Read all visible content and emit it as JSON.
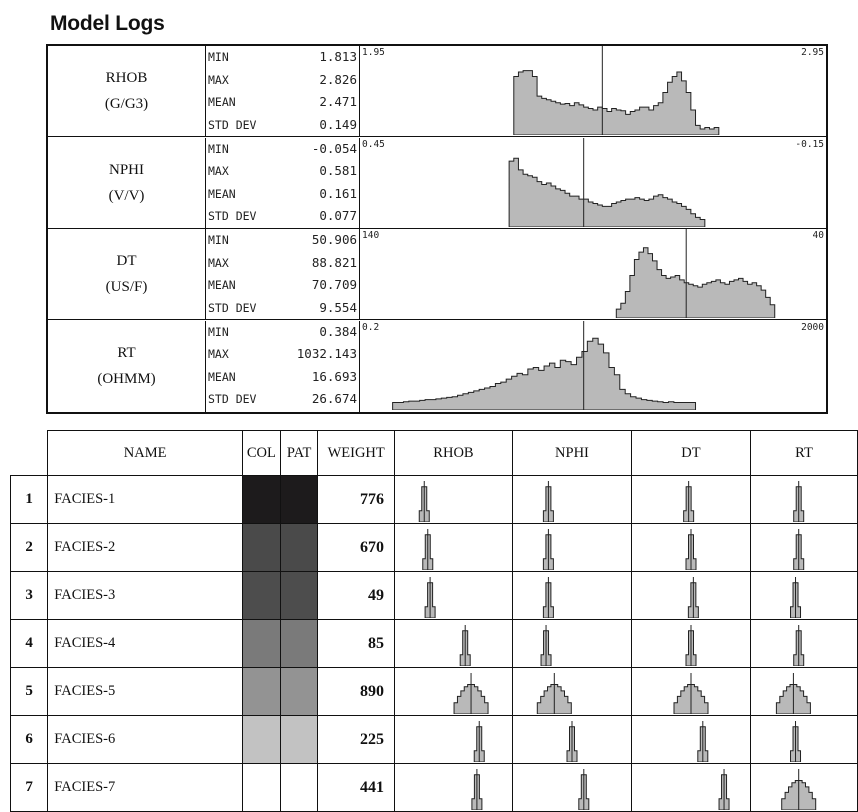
{
  "title": "Model Logs",
  "logs": [
    {
      "name": "RHOB",
      "unit": "(G/G3)",
      "min": "1.813",
      "max": "2.826",
      "mean": "2.471",
      "std": "0.149",
      "range_left": "1.95",
      "range_right": "2.95",
      "hist": [
        0,
        0,
        0,
        0,
        0,
        0,
        0,
        0,
        0,
        0,
        0,
        0,
        0,
        0,
        0,
        0,
        0,
        0,
        0,
        0,
        0,
        0,
        0,
        0,
        0,
        0,
        0,
        0,
        0,
        0,
        0,
        0,
        0,
        0,
        0,
        0,
        0,
        0,
        0,
        0,
        0,
        0,
        0,
        0,
        0,
        0,
        0,
        0,
        0,
        0,
        0,
        0,
        0,
        0,
        0,
        0,
        0,
        0,
        0,
        0,
        0,
        0,
        0,
        0,
        0,
        0,
        0,
        0,
        0,
        0,
        0,
        0,
        0,
        0,
        0,
        0,
        0,
        0,
        0,
        0,
        0,
        0,
        0,
        0,
        0,
        0,
        0,
        0,
        0,
        0,
        0,
        0,
        0,
        0,
        0,
        0,
        0,
        0,
        0,
        0,
        0,
        0,
        0,
        0,
        0,
        0,
        0,
        0,
        0,
        0,
        0,
        0,
        0,
        0,
        0,
        0,
        0,
        0,
        0,
        0,
        0,
        0,
        0,
        0,
        0,
        0,
        0,
        0,
        0,
        0,
        0,
        0,
        0,
        0,
        0,
        0,
        0,
        0,
        0,
        0,
        0,
        0,
        0,
        0,
        0,
        0,
        0,
        0,
        0,
        0,
        0,
        0,
        0,
        0,
        55,
        60,
        78,
        80,
        82,
        80,
        74,
        60,
        44,
        40,
        38,
        36,
        34,
        33,
        34,
        35,
        30,
        32,
        28,
        30,
        33,
        30,
        26,
        28,
        24,
        26,
        30,
        26,
        24,
        22,
        20,
        25,
        22,
        24,
        23,
        25,
        26,
        24,
        22,
        25,
        26,
        28,
        30,
        32,
        40,
        55,
        70,
        78,
        80,
        75,
        60,
        40,
        20,
        4,
        0,
        0,
        1,
        0,
        0,
        0
      ],
      "mean_frac": 0.52
    },
    {
      "name": "NPHI",
      "unit": "(V/V)",
      "min": "-0.054",
      "max": "0.581",
      "mean": "0.161",
      "std": "0.077",
      "range_left": "0.45",
      "range_right": "-0.15",
      "hist": [
        0,
        0,
        0,
        0,
        0,
        0,
        0,
        0,
        0,
        0,
        0,
        0,
        0,
        0,
        0,
        0,
        0,
        0,
        0,
        0,
        0,
        0,
        0,
        0,
        0,
        0,
        0,
        0,
        0,
        0,
        0,
        0,
        0,
        0,
        0,
        0,
        0,
        0,
        0,
        0,
        0,
        0,
        0,
        0,
        0,
        0,
        0,
        0,
        0,
        0,
        0,
        0,
        0,
        0,
        0,
        0,
        0,
        0,
        0,
        0,
        0,
        0,
        0,
        0,
        0,
        0,
        0,
        0,
        0,
        0,
        0,
        0,
        0,
        0,
        0,
        0,
        0,
        0,
        0,
        0,
        0,
        0,
        0,
        0,
        0,
        0,
        0,
        0,
        0,
        0,
        0,
        0,
        0,
        0,
        0,
        0,
        0,
        0,
        0,
        0,
        0,
        0,
        0,
        0,
        0,
        0,
        0,
        0,
        0,
        0,
        0,
        0,
        0,
        0,
        0,
        0,
        0,
        0,
        0,
        0,
        0,
        0,
        0,
        0,
        0,
        0,
        0,
        0,
        0,
        0,
        0,
        0,
        0,
        0,
        0,
        0,
        0,
        0,
        0,
        0,
        0,
        0,
        0,
        0,
        0,
        0,
        0,
        0,
        0,
        0,
        0,
        0,
        0,
        0,
        80,
        85,
        70,
        65,
        60,
        55,
        58,
        52,
        48,
        44,
        40,
        42,
        36,
        38,
        34,
        30,
        28,
        26,
        24,
        26,
        22,
        20,
        18,
        20,
        22,
        24,
        26,
        28,
        30,
        32,
        30,
        28,
        26,
        28,
        30,
        32,
        34,
        30,
        28,
        26,
        24,
        22,
        18,
        14,
        8,
        4,
        2,
        0,
        0,
        0,
        0,
        0,
        0,
        0,
        0,
        0,
        0,
        0,
        0,
        0
      ],
      "mean_frac": 0.48
    },
    {
      "name": "DT",
      "unit": "(US/F)",
      "min": "50.906",
      "max": "88.821",
      "mean": "70.709",
      "std": "9.554",
      "range_left": "140",
      "range_right": "40",
      "hist": [
        0,
        0,
        0,
        0,
        0,
        0,
        0,
        0,
        0,
        0,
        0,
        0,
        0,
        0,
        0,
        0,
        0,
        0,
        0,
        0,
        0,
        0,
        0,
        0,
        0,
        0,
        0,
        0,
        0,
        0,
        0,
        0,
        0,
        0,
        0,
        0,
        0,
        0,
        0,
        0,
        0,
        0,
        0,
        0,
        0,
        0,
        0,
        0,
        0,
        0,
        0,
        0,
        0,
        0,
        0,
        0,
        0,
        0,
        0,
        0,
        0,
        0,
        0,
        0,
        0,
        0,
        0,
        0,
        0,
        0,
        0,
        0,
        0,
        0,
        0,
        0,
        0,
        0,
        0,
        0,
        0,
        0,
        0,
        0,
        0,
        0,
        0,
        0,
        0,
        0,
        0,
        0,
        0,
        0,
        0,
        0,
        0,
        0,
        0,
        0,
        0,
        0,
        0,
        0,
        0,
        0,
        0,
        0,
        0,
        0,
        0,
        0,
        0,
        0,
        0,
        0,
        0,
        0,
        0,
        0,
        0,
        0,
        0,
        0,
        0,
        0,
        0,
        0,
        0,
        0,
        0,
        0,
        0,
        0,
        0,
        0,
        0,
        0,
        0,
        0,
        0,
        0,
        0,
        0,
        0,
        0,
        0,
        0,
        0,
        0,
        0,
        0,
        0,
        0,
        0,
        0,
        0,
        0,
        0,
        0,
        0,
        0,
        0,
        0,
        0,
        0,
        0,
        0,
        0,
        0,
        0,
        0,
        0,
        0,
        0,
        0,
        0,
        0,
        0,
        0,
        0,
        0,
        0,
        0,
        0,
        0,
        0,
        0,
        0,
        0,
        0,
        0,
        0,
        0,
        0,
        0,
        0,
        0,
        0,
        0,
        0,
        0,
        0,
        0,
        0,
        0,
        0,
        0,
        0,
        0
      ],
      "mean_frac": 0.7
    },
    {
      "name": "RT",
      "unit": "(OHMM)",
      "min": "0.384",
      "max": "1032.143",
      "mean": "16.693",
      "std": "26.674",
      "range_left": "0.2",
      "range_right": "2000",
      "hist": [],
      "mean_frac": 0.48
    }
  ],
  "stat_labels": {
    "min": "MIN",
    "max": "MAX",
    "mean": "MEAN",
    "std": "STD DEV"
  },
  "table": {
    "headers": {
      "name": "NAME",
      "col": "COL",
      "pat": "PAT",
      "weight": "WEIGHT",
      "rhob": "RHOB",
      "nphi": "NPHI",
      "dt": "DT",
      "rt": "RT"
    },
    "rows": [
      {
        "num": "1",
        "name": "FACIES-1",
        "weight": "776",
        "color": "#1d1b1c"
      },
      {
        "num": "2",
        "name": "FACIES-2",
        "weight": "670",
        "color": "#4a4a4a"
      },
      {
        "num": "3",
        "name": "FACIES-3",
        "weight": "49",
        "color": "#4d4d4d"
      },
      {
        "num": "4",
        "name": "FACIES-4",
        "weight": "85",
        "color": "#7a7a7a"
      },
      {
        "num": "5",
        "name": "FACIES-5",
        "weight": "890",
        "color": "#939393"
      },
      {
        "num": "6",
        "name": "FACIES-6",
        "weight": "225",
        "color": "#c2c2c2"
      },
      {
        "num": "7",
        "name": "FACIES-7",
        "weight": "441",
        "color": "#ffffff"
      }
    ]
  },
  "chart_data": {
    "type": "bar",
    "title": "Model Logs",
    "series": [
      {
        "name": "RHOB",
        "stats": {
          "min": 1.813,
          "max": 2.826,
          "mean": 2.471,
          "std_dev": 0.149
        },
        "x_range": [
          1.95,
          2.95
        ]
      },
      {
        "name": "NPHI",
        "stats": {
          "min": -0.054,
          "max": 0.581,
          "mean": 0.161,
          "std_dev": 0.077
        },
        "x_range": [
          0.45,
          -0.15
        ]
      },
      {
        "name": "DT",
        "stats": {
          "min": 50.906,
          "max": 88.821,
          "mean": 70.709,
          "std_dev": 9.554
        },
        "x_range": [
          140,
          40
        ]
      },
      {
        "name": "RT",
        "stats": {
          "min": 0.384,
          "max": 1032.143,
          "mean": 16.693,
          "std_dev": 26.674
        },
        "x_range": [
          0.2,
          2000
        ],
        "x_scale": "log"
      }
    ],
    "facies": [
      {
        "name": "FACIES-1",
        "weight": 776
      },
      {
        "name": "FACIES-2",
        "weight": 670
      },
      {
        "name": "FACIES-3",
        "weight": 49
      },
      {
        "name": "FACIES-4",
        "weight": 85
      },
      {
        "name": "FACIES-5",
        "weight": 890
      },
      {
        "name": "FACIES-6",
        "weight": 225
      },
      {
        "name": "FACIES-7",
        "weight": 441
      }
    ]
  }
}
